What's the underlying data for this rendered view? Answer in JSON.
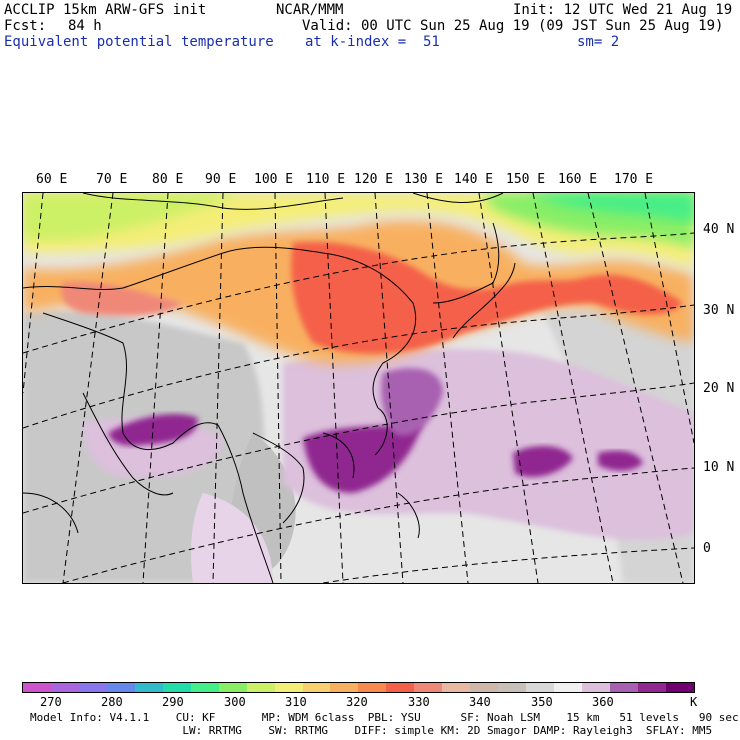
{
  "header": {
    "model_title": "ACCLIP 15km ARW-GFS init",
    "org": "NCAR/MMM",
    "init": "Init: 12 UTC Wed 21 Aug 19",
    "fcst_label": "Fcst:",
    "fcst_value": "84 h",
    "valid": "Valid: 00 UTC Sun 25 Aug 19 (09 JST Sun 25 Aug 19)",
    "field": "Equivalent potential temperature",
    "level": "at k-index =  51",
    "smoothing": "sm= 2"
  },
  "map": {
    "lon_labels": [
      "60 E",
      "70 E",
      "80 E",
      "90 E",
      "100 E",
      "110 E",
      "120 E",
      "130 E",
      "140 E",
      "150 E",
      "160 E",
      "170 E"
    ],
    "lat_labels": [
      "40 N",
      "30 N",
      "20 N",
      "10 N",
      "0"
    ]
  },
  "colorbar": {
    "colors": [
      "#cc55cc",
      "#aa66dd",
      "#8877ee",
      "#6688ee",
      "#33bbcc",
      "#22ddaa",
      "#44ee88",
      "#88ee66",
      "#ccf066",
      "#f4ee77",
      "#f8d070",
      "#f8b060",
      "#f88a50",
      "#f46048",
      "#f08878",
      "#e8b8a0",
      "#d0b8a8",
      "#c8c0b8",
      "#d8d8d8",
      "#f0f0f0",
      "#dcc0dc",
      "#a860b0",
      "#902890",
      "#700070"
    ],
    "labels": [
      "270",
      "280",
      "290",
      "300",
      "310",
      "320",
      "330",
      "340",
      "350",
      "360",
      "K"
    ]
  },
  "footer": {
    "line1": "Model Info: V4.1.1    CU: KF       MP: WDM 6class  PBL: YSU      SF: Noah LSM    15 km   51 levels   90 sec",
    "line2": "                       LW: RRTMG    SW: RRTMG    DIFF: simple KM: 2D Smagor DAMP: Rayleigh3  SFLAY: MM5"
  }
}
